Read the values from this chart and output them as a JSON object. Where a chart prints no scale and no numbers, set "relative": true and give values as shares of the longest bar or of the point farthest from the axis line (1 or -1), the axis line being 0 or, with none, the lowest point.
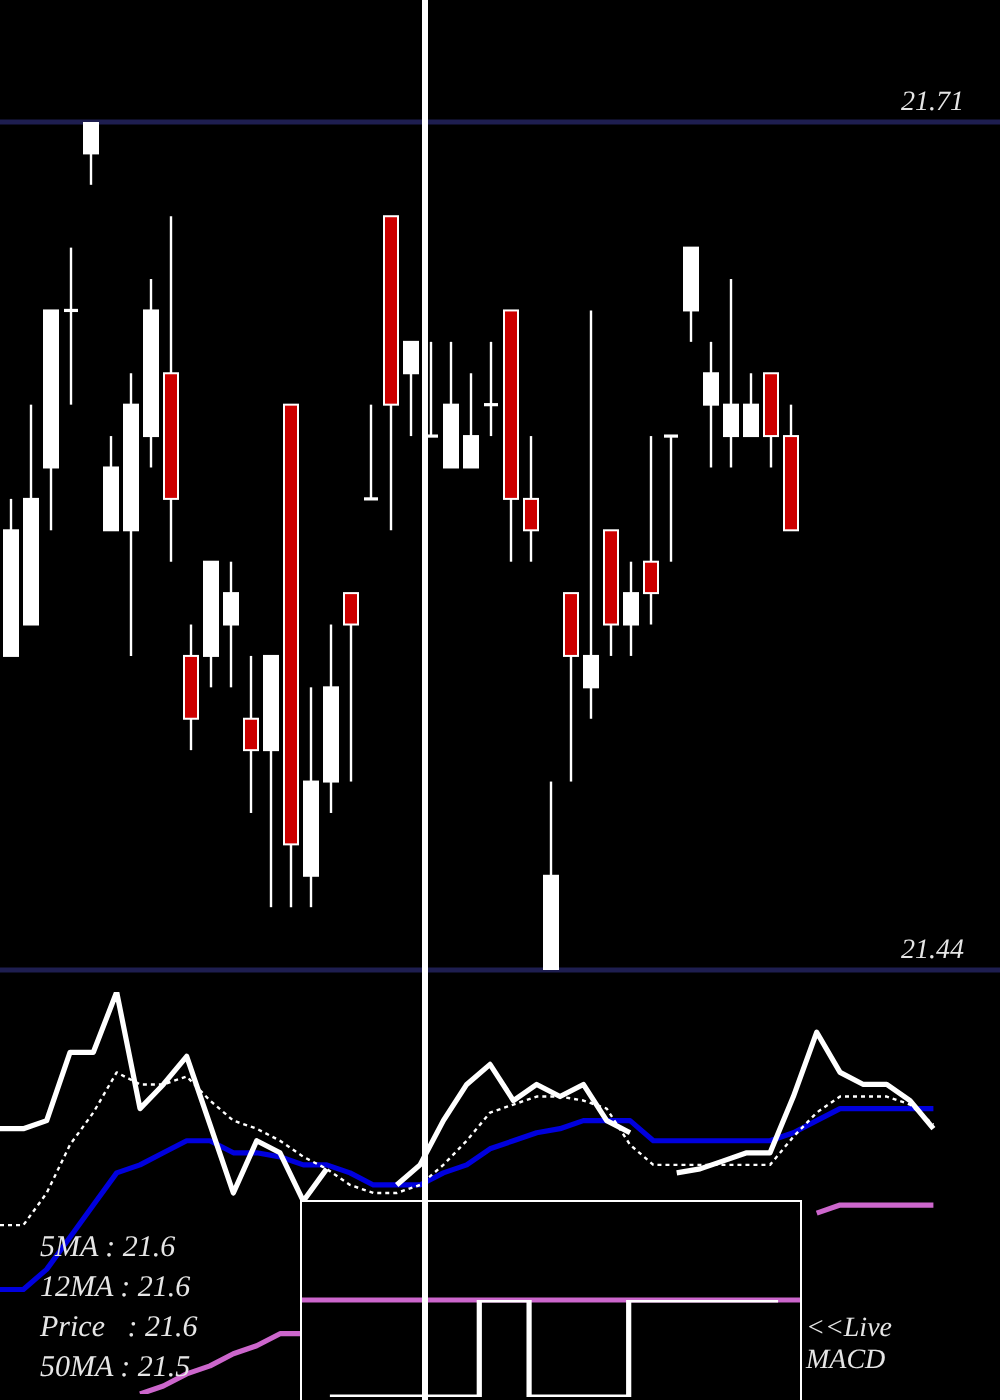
{
  "chart_data": [
    {
      "type": "candlestick",
      "categories": [
        null,
        null,
        null,
        null,
        null,
        null,
        null,
        null,
        null,
        null,
        null,
        null,
        null,
        null,
        null,
        null,
        null,
        null,
        null,
        null,
        null,
        null,
        null,
        null,
        null,
        null,
        null,
        null,
        null,
        null,
        null,
        null,
        null,
        null,
        null,
        null,
        null,
        null,
        null,
        null
      ],
      "ohlc": [
        [
          21.54,
          21.59,
          21.54,
          21.58
        ],
        [
          21.55,
          21.62,
          21.55,
          21.59
        ],
        [
          21.6,
          21.65,
          21.58,
          21.65
        ],
        [
          21.65,
          21.67,
          21.62,
          21.65
        ],
        [
          21.7,
          21.71,
          21.69,
          21.71
        ],
        [
          21.58,
          21.61,
          21.58,
          21.6
        ],
        [
          21.58,
          21.63,
          21.54,
          21.62
        ],
        [
          21.61,
          21.66,
          21.6,
          21.65
        ],
        [
          21.63,
          21.68,
          21.57,
          21.59
        ],
        [
          21.54,
          21.55,
          21.51,
          21.52
        ],
        [
          21.54,
          21.57,
          21.53,
          21.57
        ],
        [
          21.55,
          21.57,
          21.53,
          21.56
        ],
        [
          21.52,
          21.54,
          21.49,
          21.51
        ],
        [
          21.51,
          21.54,
          21.46,
          21.54
        ],
        [
          21.62,
          21.62,
          21.46,
          21.48
        ],
        [
          21.47,
          21.53,
          21.46,
          21.5
        ],
        [
          21.5,
          21.55,
          21.49,
          21.53
        ],
        [
          21.56,
          21.56,
          21.5,
          21.55
        ],
        [
          21.59,
          21.62,
          21.59,
          21.59
        ],
        [
          21.68,
          21.68,
          21.58,
          21.62
        ],
        [
          21.63,
          21.64,
          21.61,
          21.64
        ],
        [
          21.61,
          21.64,
          21.61,
          21.61
        ],
        [
          21.6,
          21.64,
          21.6,
          21.62
        ],
        [
          21.6,
          21.63,
          21.6,
          21.61
        ],
        [
          21.62,
          21.64,
          21.61,
          21.62
        ],
        [
          21.65,
          21.65,
          21.57,
          21.59
        ],
        [
          21.59,
          21.61,
          21.57,
          21.58
        ],
        [
          21.44,
          21.5,
          21.44,
          21.47
        ],
        [
          21.56,
          21.56,
          21.5,
          21.54
        ],
        [
          21.53,
          21.65,
          21.52,
          21.54
        ],
        [
          21.58,
          21.58,
          21.54,
          21.55
        ],
        [
          21.55,
          21.57,
          21.54,
          21.56
        ],
        [
          21.57,
          21.61,
          21.55,
          21.56
        ],
        [
          21.61,
          21.61,
          21.57,
          21.61
        ],
        [
          21.65,
          21.67,
          21.64,
          21.67
        ],
        [
          21.62,
          21.64,
          21.6,
          21.63
        ],
        [
          21.61,
          21.66,
          21.6,
          21.62
        ],
        [
          21.61,
          21.63,
          21.61,
          21.62
        ],
        [
          21.63,
          21.63,
          21.6,
          21.61
        ],
        [
          21.61,
          21.62,
          21.58,
          21.58
        ]
      ],
      "colors": [
        "#ffffff",
        "#ffffff",
        "#ffffff",
        "#ffffff",
        "#ffffff",
        "#ffffff",
        "#ffffff",
        "#ffffff",
        "#cc0000",
        "#cc0000",
        "#ffffff",
        "#ffffff",
        "#cc0000",
        "#ffffff",
        "#cc0000",
        "#ffffff",
        "#ffffff",
        "#cc0000",
        "#ffffff",
        "#cc0000",
        "#ffffff",
        "#ffffff",
        "#ffffff",
        "#ffffff",
        "#ffffff",
        "#cc0000",
        "#cc0000",
        "#ffffff",
        "#cc0000",
        "#ffffff",
        "#cc0000",
        "#ffffff",
        "#cc0000",
        "#ffffff",
        "#ffffff",
        "#ffffff",
        "#ffffff",
        "#ffffff",
        "#cc0000",
        "#cc0000"
      ],
      "ylim": [
        21.44,
        21.71
      ],
      "yticks": [
        21.44,
        21.71
      ],
      "grid": "y"
    },
    {
      "type": "line",
      "relative": true,
      "categories": [
        null,
        null,
        null,
        null,
        null,
        null,
        null,
        null,
        null,
        null,
        null,
        null,
        null,
        null,
        null,
        null,
        null,
        null,
        null,
        null,
        null,
        null,
        null,
        null,
        null,
        null,
        null,
        null,
        null,
        null,
        null,
        null,
        null,
        null,
        null,
        null,
        null,
        null,
        null,
        null,
        null
      ],
      "series": [
        {
          "color": "#cc66cc",
          "values": [
            null,
            null,
            null,
            null,
            null,
            null,
            0.0,
            0.02,
            0.05,
            0.07,
            0.1,
            0.12,
            0.15,
            0.15,
            null,
            null,
            null,
            null,
            null,
            null,
            null,
            null,
            null,
            null,
            null,
            null,
            null,
            null,
            null,
            null,
            null,
            null,
            null,
            null,
            null,
            0.45,
            0.47,
            0.47,
            0.47,
            0.47,
            0.47
          ]
        },
        {
          "color": "#0000dd",
          "values": [
            0.26,
            0.26,
            0.31,
            0.39,
            0.47,
            0.55,
            0.57,
            0.6,
            0.63,
            0.63,
            0.6,
            0.6,
            0.59,
            0.57,
            0.57,
            0.55,
            0.52,
            0.52,
            0.52,
            0.55,
            0.57,
            0.61,
            0.63,
            0.65,
            0.66,
            0.68,
            0.68,
            0.68,
            0.63,
            0.63,
            0.63,
            0.63,
            0.63,
            0.63,
            0.65,
            0.68,
            0.71,
            0.71,
            0.71,
            0.71,
            0.71
          ]
        },
        {
          "color": "#ffffff",
          "line_style": "dotted",
          "values": [
            0.42,
            0.42,
            0.5,
            0.62,
            0.7,
            0.8,
            0.77,
            0.77,
            0.79,
            0.73,
            0.68,
            0.66,
            0.63,
            0.59,
            0.56,
            0.52,
            0.5,
            0.5,
            0.52,
            0.57,
            0.63,
            0.7,
            0.72,
            0.74,
            0.74,
            0.73,
            0.71,
            0.62,
            0.57,
            0.57,
            0.57,
            0.57,
            0.57,
            0.57,
            0.64,
            0.7,
            0.74,
            0.74,
            0.74,
            0.72,
            0.67
          ]
        },
        {
          "color": "#ffffff",
          "values": [
            0.66,
            0.66,
            0.68,
            0.85,
            0.85,
            1.0,
            0.71,
            0.77,
            0.84,
            0.67,
            0.5,
            0.63,
            0.6,
            0.48,
            0.56,
            null,
            null,
            0.52,
            0.57,
            0.68,
            0.77,
            0.82,
            0.73,
            0.77,
            0.74,
            0.77,
            0.68,
            0.65,
            null,
            0.55,
            0.56,
            0.58,
            0.6,
            0.6,
            0.74,
            0.9,
            0.8,
            0.77,
            0.77,
            0.73,
            0.66
          ]
        }
      ],
      "annotations": [
        "5MA : 21.6",
        "12MA : 21.6",
        "Price   : 21.6",
        "50MA : 21.5"
      ]
    },
    {
      "type": "step",
      "relative": true,
      "categories": [
        null,
        null,
        null,
        null,
        null,
        null,
        null,
        null,
        null,
        null
      ],
      "series": [
        {
          "color": "#ffffff",
          "values": [
            0,
            0,
            0,
            1,
            0,
            0,
            1,
            1,
            1,
            1
          ]
        }
      ],
      "ref_lines": [
        {
          "axis": "y",
          "value": 1,
          "color": "#cc66cc"
        }
      ],
      "annotations": [
        "<<Live",
        "MACD"
      ]
    }
  ]
}
